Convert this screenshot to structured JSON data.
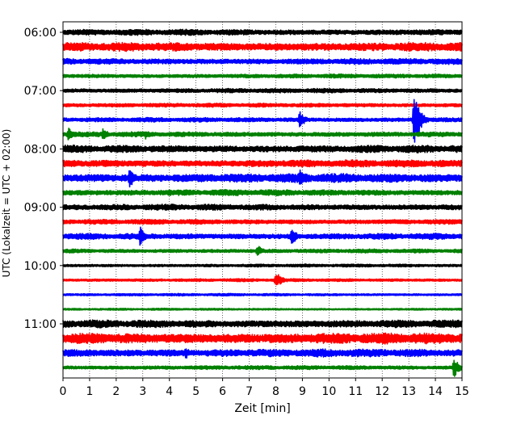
{
  "chart_data": {
    "type": "line",
    "xlabel": "Zeit  [min]",
    "ylabel": "UTC (Lokalzeit = UTC + 02:00)",
    "xlim": [
      0,
      15
    ],
    "x_ticks": [
      0,
      1,
      2,
      3,
      4,
      5,
      6,
      7,
      8,
      9,
      10,
      11,
      12,
      13,
      14,
      15
    ],
    "x_tick_labels": [
      "0",
      "1",
      "2",
      "3",
      "4",
      "5",
      "6",
      "7",
      "8",
      "9",
      "10",
      "11",
      "12",
      "13",
      "14",
      "15"
    ],
    "y_tick_labels": [
      "06:00",
      "07:00",
      "08:00",
      "09:00",
      "10:00",
      "11:00"
    ],
    "row_minutes": 15,
    "grid": "vertical dotted at every minute",
    "colors": [
      "#000000",
      "#ff0000",
      "#0000ff",
      "#008000"
    ],
    "series": [
      {
        "start": "06:00",
        "color": "#000000",
        "amplitude": 0.12
      },
      {
        "start": "06:15",
        "color": "#ff0000",
        "amplitude": 0.18
      },
      {
        "start": "06:30",
        "color": "#0000ff",
        "amplitude": 0.12
      },
      {
        "start": "06:45",
        "color": "#008000",
        "amplitude": 0.08
      },
      {
        "start": "07:00",
        "color": "#000000",
        "amplitude": 0.09
      },
      {
        "start": "07:15",
        "color": "#ff0000",
        "amplitude": 0.08
      },
      {
        "start": "07:30",
        "color": "#0000ff",
        "amplitude": 0.09,
        "events": [
          {
            "t": 8.9,
            "amp": 0.35
          },
          {
            "t": 13.2,
            "amp": 1.2
          }
        ]
      },
      {
        "start": "07:45",
        "color": "#008000",
        "amplitude": 0.1,
        "events": [
          {
            "t": 0.2,
            "amp": 0.3
          },
          {
            "t": 1.5,
            "amp": 0.25
          },
          {
            "t": 3.1,
            "amp": 0.2
          }
        ]
      },
      {
        "start": "08:00",
        "color": "#000000",
        "amplitude": 0.15
      },
      {
        "start": "08:15",
        "color": "#ff0000",
        "amplitude": 0.15
      },
      {
        "start": "08:30",
        "color": "#0000ff",
        "amplitude": 0.18,
        "events": [
          {
            "t": 2.5,
            "amp": 0.45
          },
          {
            "t": 8.9,
            "amp": 0.4
          }
        ]
      },
      {
        "start": "08:45",
        "color": "#008000",
        "amplitude": 0.12
      },
      {
        "start": "09:00",
        "color": "#000000",
        "amplitude": 0.12
      },
      {
        "start": "09:15",
        "color": "#ff0000",
        "amplitude": 0.1
      },
      {
        "start": "09:30",
        "color": "#0000ff",
        "amplitude": 0.12,
        "events": [
          {
            "t": 2.9,
            "amp": 0.4
          },
          {
            "t": 8.6,
            "amp": 0.35
          }
        ]
      },
      {
        "start": "09:45",
        "color": "#008000",
        "amplitude": 0.08,
        "events": [
          {
            "t": 7.3,
            "amp": 0.25
          }
        ]
      },
      {
        "start": "10:00",
        "color": "#000000",
        "amplitude": 0.06
      },
      {
        "start": "10:15",
        "color": "#ff0000",
        "amplitude": 0.06,
        "events": [
          {
            "t": 8.0,
            "amp": 0.35
          }
        ]
      },
      {
        "start": "10:30",
        "color": "#0000ff",
        "amplitude": 0.05
      },
      {
        "start": "10:45",
        "color": "#008000",
        "amplitude": 0.04
      },
      {
        "start": "11:00",
        "color": "#000000",
        "amplitude": 0.16
      },
      {
        "start": "11:15",
        "color": "#ff0000",
        "amplitude": 0.22
      },
      {
        "start": "11:30",
        "color": "#0000ff",
        "amplitude": 0.16,
        "events": [
          {
            "t": 4.6,
            "amp": 0.25
          }
        ]
      },
      {
        "start": "11:45",
        "color": "#008000",
        "amplitude": 0.08,
        "events": [
          {
            "t": 14.7,
            "amp": 0.4
          }
        ]
      }
    ]
  }
}
